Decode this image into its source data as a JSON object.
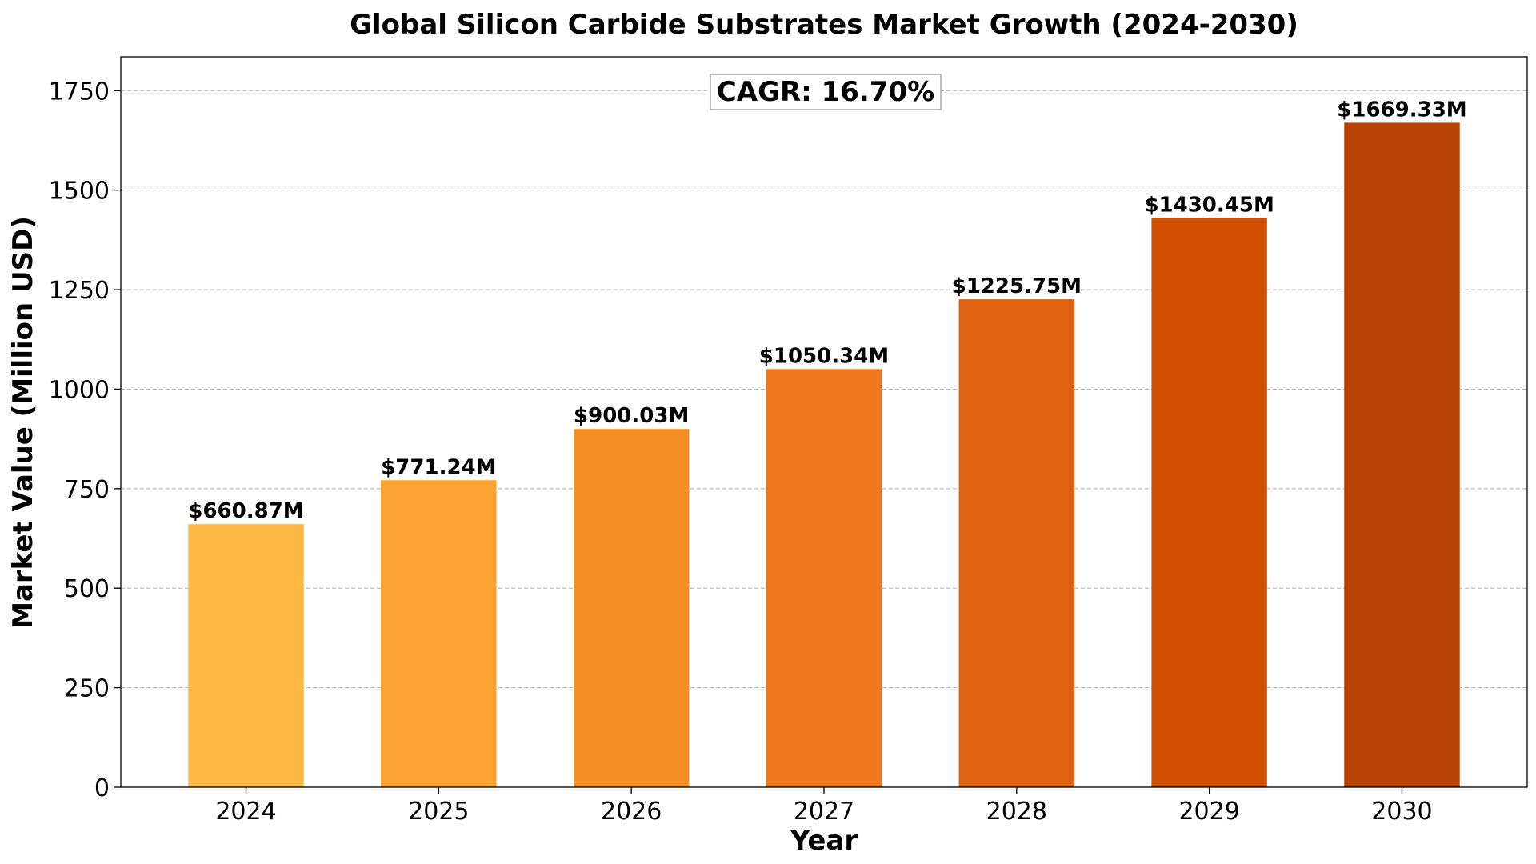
{
  "chart_data": {
    "type": "bar",
    "title": "Global Silicon Carbide Substrates Market Growth (2024-2030)",
    "xlabel": "Year",
    "ylabel": "Market Value (Million USD)",
    "categories": [
      "2024",
      "2025",
      "2026",
      "2027",
      "2028",
      "2029",
      "2030"
    ],
    "values": [
      660.87,
      771.24,
      900.03,
      1050.34,
      1225.75,
      1430.45,
      1669.33
    ],
    "value_labels": [
      "$660.87M",
      "$771.24M",
      "$900.03M",
      "$1050.34M",
      "$1225.75M",
      "$1430.45M",
      "$1669.33M"
    ],
    "bar_colors": [
      "#FEB845",
      "#FCA431",
      "#F88F22",
      "#EF761A",
      "#E06110",
      "#D15003",
      "#B84304"
    ],
    "ylim": [
      0,
      1835
    ],
    "yticks": [
      0,
      250,
      500,
      750,
      1000,
      1250,
      1500,
      1750
    ],
    "grid": "y-dashed",
    "annotation": "CAGR: 16.70%"
  }
}
